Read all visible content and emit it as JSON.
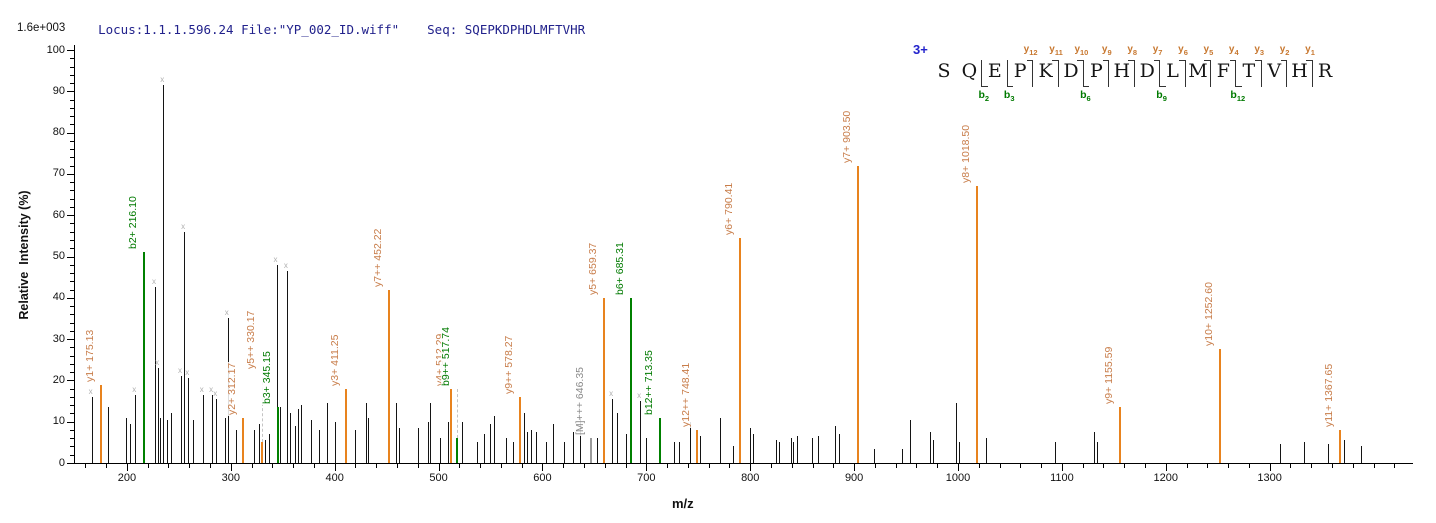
{
  "header": {
    "locus_file": "Locus:1.1.1.596.24 File:\"YP_002_ID.wiff\"",
    "seq": "Seq: SQEPKDPHDLMFTVHR"
  },
  "scale_label": "1.6e+003",
  "axes": {
    "x_title": "m/z",
    "y_title": "Relative  Intensity (%)",
    "x_range": [
      150,
      1437
    ],
    "y_range": [
      0,
      100
    ],
    "x_major_ticks": [
      200,
      300,
      400,
      500,
      600,
      700,
      800,
      900,
      1000,
      1100,
      1200,
      1300
    ],
    "x_minor_start": 160,
    "x_minor_end": 1420,
    "x_minor_step": 20,
    "y_major_step": 10,
    "y_minor_step": 2
  },
  "colors": {
    "y_ion_line": "#e8831e",
    "y_ion_label": "#c87d4a",
    "b_ion_line": "#008000",
    "b_ion_label": "#007a00",
    "neutral_line": "#9a9a9a",
    "neutral_label": "#8a8a8a",
    "peak": "#141414",
    "axis": "#000000",
    "leader": "#c4c4c4",
    "x_mark": "#b0b0b0",
    "charge": "#2222cc",
    "header_text": "#22228c"
  },
  "chart_data": {
    "type": "bar",
    "subtype": "ms2-mass-spectrum",
    "xlabel": "m/z",
    "ylabel": "Relative Intensity (%)",
    "xlim": [
      150,
      1437
    ],
    "ylim": [
      0,
      100
    ],
    "grid": false,
    "labeled_peaks": [
      {
        "ion": "y1+",
        "mz": 175.13,
        "intensity": 19,
        "series": "y",
        "label": "y1+ 175.13"
      },
      {
        "ion": "b2+",
        "mz": 216.1,
        "intensity": 51,
        "series": "b",
        "label": "b2+ 216.10"
      },
      {
        "ion": "y2+",
        "mz": 312.17,
        "intensity": 11,
        "series": "y",
        "label": "y2+ 312.17"
      },
      {
        "ion": "y5++",
        "mz": 330.17,
        "intensity": 5,
        "series": "y",
        "label": "y5++ 330.17",
        "label_anchor": 22,
        "leader": "dashed"
      },
      {
        "ion": "b3+",
        "mz": 345.15,
        "intensity": 13.5,
        "series": "b",
        "label": "b3+ 345.15"
      },
      {
        "ion": "y3+",
        "mz": 411.25,
        "intensity": 18,
        "series": "y",
        "label": "y3+ 411.25"
      },
      {
        "ion": "y7++",
        "mz": 452.22,
        "intensity": 42,
        "series": "y",
        "label": "y7++ 452.22"
      },
      {
        "ion": "y4+",
        "mz": 512.29,
        "intensity": 18,
        "series": "y",
        "label": "y4+ 512.29"
      },
      {
        "ion": "b9++",
        "mz": 517.74,
        "intensity": 6,
        "series": "b",
        "label": "b9++ 517.74",
        "label_anchor": 18,
        "leader": "dashed"
      },
      {
        "ion": "y9++",
        "mz": 578.27,
        "intensity": 16,
        "series": "y",
        "label": "y9++ 578.27"
      },
      {
        "ion": "[M]+++",
        "mz": 646.35,
        "intensity": 6,
        "series": "M",
        "label": "[M]+++ 646.35"
      },
      {
        "ion": "y5+",
        "mz": 659.37,
        "intensity": 40,
        "series": "y",
        "label": "y5+ 659.37"
      },
      {
        "ion": "b6+",
        "mz": 685.31,
        "intensity": 40,
        "series": "b",
        "label": "b6+ 685.31"
      },
      {
        "ion": "b12++",
        "mz": 713.35,
        "intensity": 11,
        "series": "b",
        "label": "b12++ 713.35"
      },
      {
        "ion": "y12++",
        "mz": 748.41,
        "intensity": 8,
        "series": "y",
        "label": "y12++ 748.41"
      },
      {
        "ion": "y6+",
        "mz": 790.41,
        "intensity": 54.5,
        "series": "y",
        "label": "y6+ 790.41"
      },
      {
        "ion": "y7+",
        "mz": 903.5,
        "intensity": 72,
        "series": "y",
        "label": "y7+ 903.50"
      },
      {
        "ion": "y8+",
        "mz": 1018.5,
        "intensity": 67,
        "series": "y",
        "label": "y8+ 1018.50"
      },
      {
        "ion": "y9+",
        "mz": 1155.59,
        "intensity": 13.5,
        "series": "y",
        "label": "y9+ 1155.59"
      },
      {
        "ion": "y10+",
        "mz": 1252.6,
        "intensity": 27.5,
        "series": "y",
        "label": "y10+ 1252.60"
      },
      {
        "ion": "y11+",
        "mz": 1367.65,
        "intensity": 8,
        "series": "y",
        "label": "y11+ 1367.65"
      }
    ],
    "unassigned_peaks": [
      [
        166,
        16
      ],
      [
        182,
        13.5
      ],
      [
        199,
        11
      ],
      [
        203,
        9.5
      ],
      [
        208,
        16.5
      ],
      [
        227,
        42.5
      ],
      [
        230,
        23
      ],
      [
        232,
        11
      ],
      [
        235,
        91.5
      ],
      [
        239,
        10.5
      ],
      [
        242,
        12
      ],
      [
        252,
        21
      ],
      [
        255,
        56
      ],
      [
        259,
        20.5
      ],
      [
        264,
        10.5
      ],
      [
        273,
        16.5
      ],
      [
        282,
        16.5
      ],
      [
        286,
        15.5
      ],
      [
        294,
        11
      ],
      [
        297,
        35
      ],
      [
        305,
        8
      ],
      [
        322,
        8
      ],
      [
        327,
        9.5
      ],
      [
        333,
        5.5
      ],
      [
        337,
        7
      ],
      [
        344,
        48
      ],
      [
        347,
        13.5
      ],
      [
        354,
        46.5
      ],
      [
        357,
        12
      ],
      [
        362,
        9
      ],
      [
        365,
        13
      ],
      [
        368,
        14
      ],
      [
        377,
        10.5
      ],
      [
        385,
        8
      ],
      [
        393,
        14.5
      ],
      [
        400,
        10
      ],
      [
        420,
        8
      ],
      [
        430,
        14.5
      ],
      [
        432,
        11
      ],
      [
        459,
        14.5
      ],
      [
        462,
        8.5
      ],
      [
        480,
        8.5
      ],
      [
        490,
        10
      ],
      [
        492,
        14.5
      ],
      [
        501,
        6
      ],
      [
        509,
        10
      ],
      [
        523,
        10
      ],
      [
        537,
        5
      ],
      [
        544,
        7
      ],
      [
        549,
        9.5
      ],
      [
        553,
        11.5
      ],
      [
        565,
        6
      ],
      [
        572,
        5
      ],
      [
        582,
        12
      ],
      [
        585,
        7.5
      ],
      [
        589,
        8
      ],
      [
        594,
        7.5
      ],
      [
        603,
        5
      ],
      [
        610,
        9.5
      ],
      [
        621,
        5
      ],
      [
        629,
        7.5
      ],
      [
        636,
        11
      ],
      [
        652,
        6
      ],
      [
        658,
        6
      ],
      [
        667,
        15.5
      ],
      [
        672,
        12
      ],
      [
        680,
        7
      ],
      [
        694,
        15
      ],
      [
        700,
        6
      ],
      [
        727,
        5
      ],
      [
        731,
        5
      ],
      [
        742,
        10
      ],
      [
        752,
        6.5
      ],
      [
        771,
        11
      ],
      [
        783,
        4
      ],
      [
        800,
        8.5
      ],
      [
        803,
        7
      ],
      [
        825,
        5.5
      ],
      [
        828,
        5
      ],
      [
        839,
        6
      ],
      [
        841,
        5
      ],
      [
        845,
        6.5
      ],
      [
        859,
        6
      ],
      [
        865,
        6.5
      ],
      [
        882,
        9
      ],
      [
        885,
        7
      ],
      [
        919,
        3.5
      ],
      [
        946,
        3.5
      ],
      [
        954,
        10.5
      ],
      [
        973,
        7.5
      ],
      [
        976,
        5.5
      ],
      [
        998,
        14.5
      ],
      [
        1001,
        5
      ],
      [
        1027,
        6
      ],
      [
        1093,
        5
      ],
      [
        1131,
        7.5
      ],
      [
        1134,
        5
      ],
      [
        1310,
        4.5
      ],
      [
        1333,
        5
      ],
      [
        1356,
        4.5
      ],
      [
        1372,
        5.5
      ],
      [
        1388,
        4
      ]
    ]
  },
  "fragmentation": {
    "charge": "3+",
    "residues": [
      "S",
      "Q",
      "E",
      "P",
      "K",
      "D",
      "P",
      "H",
      "D",
      "L",
      "M",
      "F",
      "T",
      "V",
      "H",
      "R"
    ],
    "dividers": [
      {
        "after": 1,
        "b": "b2"
      },
      {
        "after": 2,
        "b": "b3"
      },
      {
        "after": 3,
        "y": "y12"
      },
      {
        "after": 4,
        "y": "y11"
      },
      {
        "after": 5,
        "y": "y10",
        "b": "b6"
      },
      {
        "after": 6,
        "y": "y9"
      },
      {
        "after": 7,
        "y": "y8"
      },
      {
        "after": 8,
        "y": "y7",
        "b": "b9"
      },
      {
        "after": 9,
        "y": "y6"
      },
      {
        "after": 10,
        "y": "y5"
      },
      {
        "after": 11,
        "y": "y4",
        "b": "b12"
      },
      {
        "after": 12,
        "y": "y3"
      },
      {
        "after": 13,
        "y": "y2"
      },
      {
        "after": 14,
        "y": "y1"
      }
    ]
  }
}
